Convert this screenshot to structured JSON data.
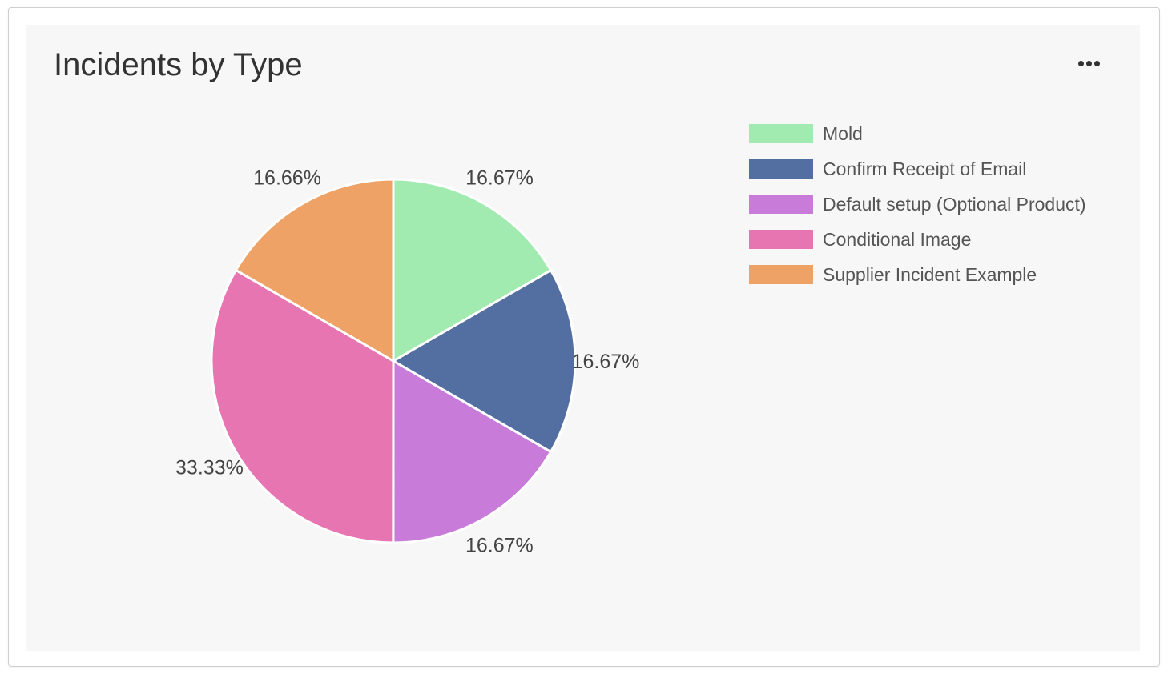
{
  "chart_data": {
    "type": "pie",
    "title": "Incidents by Type",
    "legend_position": "top-right",
    "slices": [
      {
        "label": "Mold",
        "value": 16.67,
        "display": "16.67%",
        "color": "#a1ebb1"
      },
      {
        "label": "Confirm Receipt of Email",
        "value": 16.67,
        "display": "16.67%",
        "color": "#536ea1"
      },
      {
        "label": "Default setup (Optional Product)",
        "value": 16.67,
        "display": "16.67%",
        "color": "#c87bd8"
      },
      {
        "label": "Conditional Image",
        "value": 33.33,
        "display": "33.33%",
        "color": "#e775b2"
      },
      {
        "label": "Supplier Incident Example",
        "value": 16.66,
        "display": "16.66%",
        "color": "#eea266"
      }
    ]
  },
  "menu_icon": "more-horizontal-icon"
}
